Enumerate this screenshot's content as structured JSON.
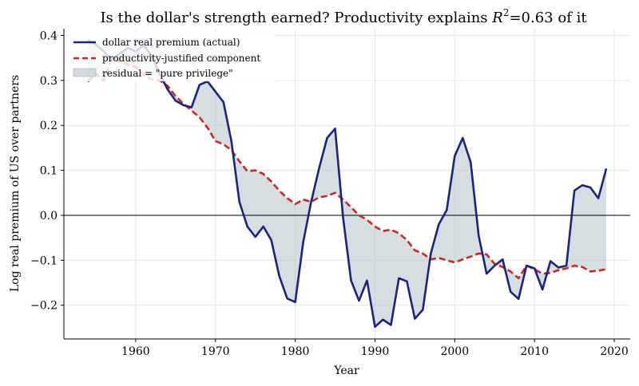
{
  "chart_data": {
    "type": "line",
    "title": "Is the dollar's strength earned? Productivity explains ",
    "title_r2": "R",
    "title_sup": "2",
    "title_tail": "=0.63 of it",
    "xlabel": "Year",
    "ylabel": "Log real premium of US over partners",
    "xlim": [
      1951,
      2022
    ],
    "ylim": [
      -0.275,
      0.415
    ],
    "xticks": [
      1960,
      1970,
      1980,
      1990,
      2000,
      2010,
      2020
    ],
    "yticks": [
      -0.2,
      -0.1,
      0.0,
      0.1,
      0.2,
      0.3,
      0.4
    ],
    "xtick_labels": [
      "1960",
      "1970",
      "1980",
      "1990",
      "2000",
      "2010",
      "2020"
    ],
    "ytick_labels": [
      "−0.2",
      "−0.1",
      "0.0",
      "0.1",
      "0.2",
      "0.3",
      "0.4"
    ],
    "grid": true,
    "zero_line": true,
    "legend_position": "top-left",
    "x": [
      1954,
      1955,
      1956,
      1957,
      1958,
      1959,
      1960,
      1961,
      1962,
      1963,
      1964,
      1965,
      1966,
      1967,
      1968,
      1969,
      1970,
      1971,
      1972,
      1973,
      1974,
      1975,
      1976,
      1977,
      1978,
      1979,
      1980,
      1981,
      1982,
      1983,
      1984,
      1985,
      1986,
      1987,
      1988,
      1989,
      1990,
      1991,
      1992,
      1993,
      1994,
      1995,
      1996,
      1997,
      1998,
      1999,
      2000,
      2001,
      2002,
      2003,
      2004,
      2005,
      2006,
      2007,
      2008,
      2009,
      2010,
      2011,
      2012,
      2013,
      2014,
      2015,
      2016,
      2017,
      2018,
      2019
    ],
    "series": [
      {
        "name": "dollar real premium (actual)",
        "color": "#1a237e",
        "style": "solid",
        "values": [
          0.39,
          0.38,
          0.365,
          0.345,
          0.36,
          0.372,
          0.365,
          0.378,
          0.355,
          0.315,
          0.28,
          0.255,
          0.245,
          0.24,
          0.29,
          0.298,
          0.275,
          0.252,
          0.165,
          0.03,
          -0.025,
          -0.048,
          -0.025,
          -0.055,
          -0.135,
          -0.185,
          -0.193,
          -0.06,
          0.03,
          0.105,
          0.172,
          0.193,
          -0.005,
          -0.145,
          -0.19,
          -0.145,
          -0.248,
          -0.232,
          -0.244,
          -0.14,
          -0.147,
          -0.23,
          -0.21,
          -0.085,
          -0.02,
          0.012,
          0.132,
          0.172,
          0.118,
          -0.045,
          -0.13,
          -0.112,
          -0.098,
          -0.17,
          -0.186,
          -0.112,
          -0.118,
          -0.165,
          -0.102,
          -0.116,
          -0.112,
          0.055,
          0.067,
          0.062,
          0.038,
          0.104
        ]
      },
      {
        "name": "productivity-justified component",
        "color": "#c62828",
        "style": "dashed",
        "values": [
          0.297,
          0.315,
          0.3,
          0.348,
          0.342,
          0.335,
          0.33,
          0.312,
          0.302,
          0.3,
          0.288,
          0.265,
          0.248,
          0.233,
          0.218,
          0.195,
          0.165,
          0.158,
          0.145,
          0.12,
          0.098,
          0.1,
          0.092,
          0.075,
          0.055,
          0.038,
          0.025,
          0.035,
          0.03,
          0.04,
          0.043,
          0.05,
          0.035,
          0.018,
          0.0,
          -0.01,
          -0.025,
          -0.035,
          -0.032,
          -0.04,
          -0.055,
          -0.078,
          -0.085,
          -0.098,
          -0.095,
          -0.1,
          -0.105,
          -0.098,
          -0.092,
          -0.085,
          -0.087,
          -0.108,
          -0.115,
          -0.125,
          -0.14,
          -0.112,
          -0.12,
          -0.13,
          -0.128,
          -0.122,
          -0.118,
          -0.112,
          -0.115,
          -0.125,
          -0.123,
          -0.12
        ]
      }
    ],
    "fill": {
      "name": "residual = \"pure privilege\"",
      "color": "#b0bec5",
      "between": [
        "dollar real premium (actual)",
        "productivity-justified component"
      ]
    }
  }
}
